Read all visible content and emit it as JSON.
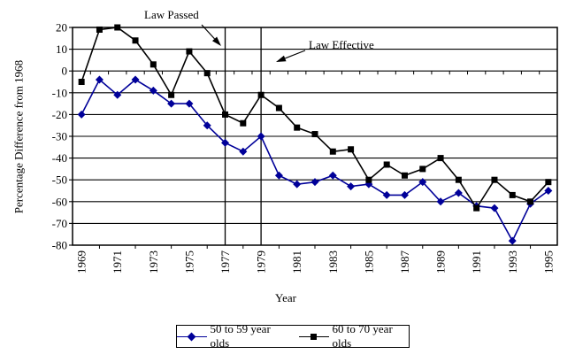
{
  "chart_data": {
    "type": "line",
    "title": "",
    "xlabel": "Year",
    "ylabel": "Percentage Difference from 1968",
    "ylim": [
      -80,
      20
    ],
    "ytick_step": 10,
    "grid": "horizontal-only",
    "legend_position": "bottom",
    "x_years": [
      1969,
      1970,
      1971,
      1972,
      1973,
      1974,
      1975,
      1976,
      1977,
      1978,
      1979,
      1980,
      1981,
      1982,
      1983,
      1984,
      1985,
      1986,
      1987,
      1988,
      1989,
      1990,
      1991,
      1992,
      1993,
      1994,
      1995
    ],
    "x_tick_labels": [
      "1969",
      "1971",
      "1973",
      "1975",
      "1977",
      "1979",
      "1981",
      "1983",
      "1985",
      "1987",
      "1989",
      "1991",
      "1993",
      "1995"
    ],
    "y_tick_labels": [
      "20",
      "10",
      "0",
      "-10",
      "-20",
      "-30",
      "-40",
      "-50",
      "-60",
      "-70",
      "-80"
    ],
    "series": [
      {
        "name": "50 to 59 year olds",
        "marker": "diamond",
        "color": "#000099",
        "values": [
          -20,
          -4,
          -11,
          -4,
          -9,
          -15,
          -15,
          -25,
          -33,
          -37,
          -30,
          -48,
          -52,
          -51,
          -48,
          -53,
          -52,
          -57,
          -57,
          -51,
          -60,
          -56,
          -62,
          -63,
          -78,
          -61,
          -55
        ]
      },
      {
        "name": "60 to 70 year olds",
        "marker": "square",
        "color": "#000000",
        "values": [
          -5,
          19,
          20,
          14,
          3,
          -11,
          9,
          -1,
          -20,
          -24,
          -11,
          -17,
          -26,
          -29,
          -37,
          -36,
          -50,
          -43,
          -48,
          -45,
          -40,
          -50,
          -63,
          -50,
          -57,
          -60,
          -51
        ]
      }
    ],
    "vlines": [
      {
        "year": 1977,
        "annotation": "Law Passed"
      },
      {
        "year": 1979,
        "annotation": "Law Effective"
      }
    ],
    "annotations": [
      {
        "text": "Law Passed"
      },
      {
        "text": "Law Effective"
      }
    ]
  }
}
